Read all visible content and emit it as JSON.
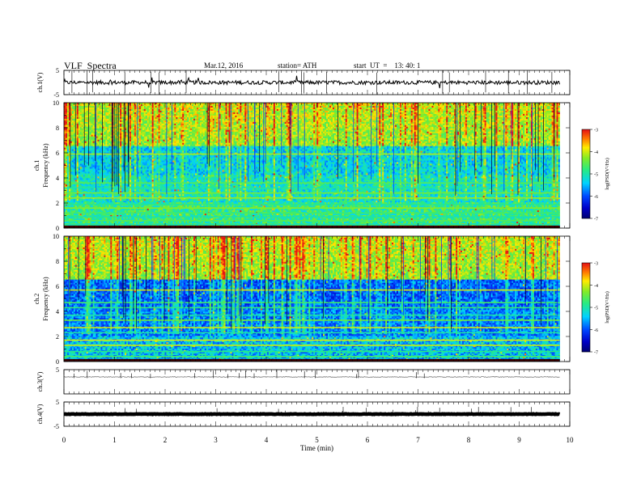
{
  "header": {
    "title": "VLF  Spectra",
    "date": "Mar.12, 2016",
    "station": "station= ATH",
    "start": "start  UT  =    13: 40: 1"
  },
  "chart_data": {
    "type": "heatmap",
    "xlabel": "Time  (min)",
    "xlim": [
      0,
      10
    ],
    "x_ticks": [
      "0",
      "1",
      "2",
      "3",
      "4",
      "5",
      "6",
      "7",
      "8",
      "9",
      "10"
    ],
    "data_end_min": 9.8,
    "panels": [
      {
        "id": "ch1-waveform",
        "type": "line",
        "ylabel": "ch.1(V)",
        "ylim": [
          -5,
          5
        ],
        "y_ticks": [
          "5",
          "-5"
        ],
        "baseline": 0.0,
        "noise": "high",
        "color": "#000000"
      },
      {
        "id": "ch1-spectrogram",
        "type": "heatmap",
        "ylabel": "ch.1\nFrequency  (kHz)",
        "ylim": [
          0,
          10
        ],
        "y_ticks": [
          "0",
          "2",
          "4",
          "6",
          "8",
          "10"
        ],
        "colorbar": {
          "label": "log(PSD(V²/Hz)",
          "range": [
            -7,
            -3
          ],
          "ticks": [
            "-7",
            "-6",
            "-5",
            "-4",
            "-3"
          ]
        },
        "bands_khz": [
          0.3,
          0.6,
          0.9,
          1.2,
          1.6,
          1.9,
          2.4,
          2.8,
          3.2,
          3.6,
          5.9
        ]
      },
      {
        "id": "ch2-spectrogram",
        "type": "heatmap",
        "ylabel": "ch.2\nFrequency  (kHz)",
        "ylim": [
          0,
          10
        ],
        "y_ticks": [
          "0",
          "2",
          "4",
          "6",
          "8",
          "10"
        ],
        "colorbar": {
          "label": "log(PSD(V²/Hz)",
          "range": [
            -7,
            -3
          ],
          "ticks": [
            "-7",
            "-6",
            "-5",
            "-4",
            "-3"
          ]
        },
        "bands_khz": [
          0.4,
          0.8,
          1.3,
          1.7,
          2.3,
          2.7,
          3.3,
          3.7,
          4.3,
          4.7,
          5.7
        ]
      },
      {
        "id": "ch3-waveform",
        "type": "line",
        "ylabel": "ch.3(V)",
        "ylim": [
          -5,
          5
        ],
        "y_ticks": [
          "5"
        ],
        "baseline": 2.0,
        "noise": "low",
        "color": "#777777"
      },
      {
        "id": "ch4-waveform",
        "type": "line",
        "ylabel": "ch.4(V)",
        "ylim": [
          -5,
          5
        ],
        "y_ticks": [
          "5",
          "-5"
        ],
        "baseline": 0.0,
        "noise": "thick",
        "color": "#000000"
      }
    ]
  }
}
